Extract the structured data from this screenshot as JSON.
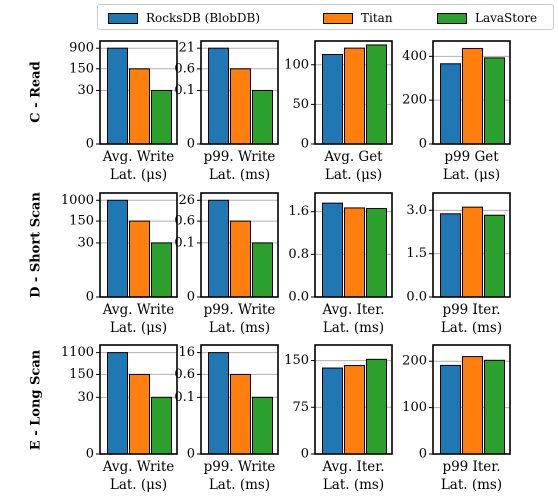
{
  "legend": [
    {
      "name": "RocksDB (BlobDB)",
      "color": "#1f77b4"
    },
    {
      "name": "Titan",
      "color": "#ff7f0e"
    },
    {
      "name": "LavaStore",
      "color": "#2ca02c"
    }
  ],
  "chart_data": [
    {
      "type": "bar",
      "row": "C - Read",
      "xlabel": [
        "Avg. Write",
        "Lat. (μs)"
      ],
      "scale": "log",
      "ticks": [
        "0",
        "30",
        "150",
        "900"
      ],
      "values": [
        900,
        150,
        30
      ]
    },
    {
      "type": "bar",
      "row": "C - Read",
      "xlabel": [
        "p99. Write",
        "Lat. (ms)"
      ],
      "scale": "log",
      "ticks": [
        "0",
        "0.1",
        "0.6",
        "21"
      ],
      "values": [
        21,
        0.6,
        0.1
      ]
    },
    {
      "type": "bar",
      "row": "C - Read",
      "xlabel": [
        "Avg. Get",
        "Lat. (μs)"
      ],
      "scale": "linear",
      "ticks": [
        "0",
        "50",
        "100"
      ],
      "ylim": [
        0,
        130
      ],
      "values": [
        113,
        121,
        125
      ]
    },
    {
      "type": "bar",
      "row": "C - Read",
      "xlabel": [
        "p99 Get",
        "Lat. (μs)"
      ],
      "scale": "linear",
      "ticks": [
        "0",
        "200",
        "400"
      ],
      "ylim": [
        0,
        470
      ],
      "values": [
        366,
        436,
        393
      ]
    },
    {
      "type": "bar",
      "row": "D - Short Scan",
      "xlabel": [
        "Avg. Write",
        "Lat. (μs)"
      ],
      "scale": "log",
      "ticks": [
        "0",
        "30",
        "150",
        "1000"
      ],
      "values": [
        1000,
        150,
        30
      ]
    },
    {
      "type": "bar",
      "row": "D - Short Scan",
      "xlabel": [
        "p99. Write",
        "Lat. (ms)"
      ],
      "scale": "log",
      "ticks": [
        "0",
        "0.1",
        "0.6",
        "26"
      ],
      "values": [
        26,
        0.6,
        0.1
      ]
    },
    {
      "type": "bar",
      "row": "D - Short Scan",
      "xlabel": [
        "Avg. Iter.",
        "Lat. (ms)"
      ],
      "scale": "linear",
      "ticks": [
        "0.0",
        "0.8",
        "1.6"
      ],
      "ylim": [
        0,
        1.95
      ],
      "values": [
        1.76,
        1.67,
        1.66
      ]
    },
    {
      "type": "bar",
      "row": "D - Short Scan",
      "xlabel": [
        "p99 Iter.",
        "Lat. (ms)"
      ],
      "scale": "linear",
      "ticks": [
        "0.0",
        "1.5",
        "3.0"
      ],
      "ylim": [
        0,
        3.6
      ],
      "values": [
        2.88,
        3.11,
        2.83
      ]
    },
    {
      "type": "bar",
      "row": "E - Long Scan",
      "xlabel": [
        "Avg. Write",
        "Lat. (μs)"
      ],
      "scale": "log",
      "ticks": [
        "0",
        "30",
        "150",
        "1100"
      ],
      "values": [
        1100,
        150,
        30
      ]
    },
    {
      "type": "bar",
      "row": "E - Long Scan",
      "xlabel": [
        "p99. Write",
        "Lat. (ms)"
      ],
      "scale": "log",
      "ticks": [
        "0",
        "0.1",
        "0.6",
        "16"
      ],
      "values": [
        16,
        0.6,
        0.1
      ]
    },
    {
      "type": "bar",
      "row": "E - Long Scan",
      "xlabel": [
        "Avg. Iter.",
        "Lat. (ms)"
      ],
      "scale": "linear",
      "ticks": [
        "0",
        "75",
        "150"
      ],
      "ylim": [
        0,
        175
      ],
      "values": [
        138,
        142,
        152
      ]
    },
    {
      "type": "bar",
      "row": "E - Long Scan",
      "xlabel": [
        "p99 Iter.",
        "Lat. (ms)"
      ],
      "scale": "linear",
      "ticks": [
        "0",
        "100",
        "200"
      ],
      "ylim": [
        0,
        235
      ],
      "values": [
        191,
        210,
        202
      ]
    }
  ]
}
